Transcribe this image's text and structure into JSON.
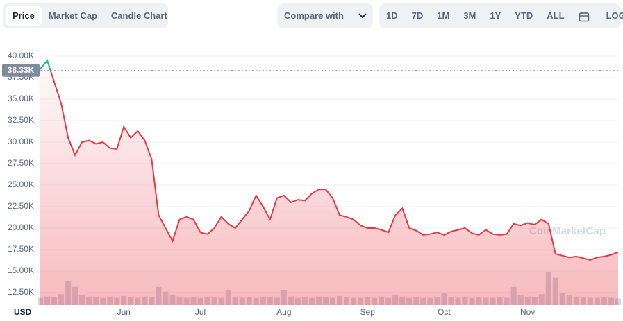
{
  "toolbar": {
    "tabs": [
      "Price",
      "Market Cap",
      "Candle Chart"
    ],
    "compare": "Compare with",
    "ranges": [
      "1D",
      "7D",
      "1M",
      "3M",
      "1Y",
      "YTD",
      "ALL"
    ],
    "log": "LOG"
  },
  "chart_data": {
    "type": "line",
    "watermark": "CoinMarketCap",
    "y_unit": "USD",
    "categories": [
      null,
      null,
      null,
      null,
      null,
      null,
      null,
      null,
      null,
      null,
      null,
      null,
      "Jun",
      null,
      null,
      null,
      null,
      null,
      null,
      null,
      null,
      null,
      null,
      "Jul",
      null,
      null,
      null,
      null,
      null,
      null,
      null,
      null,
      null,
      null,
      null,
      "Aug",
      null,
      null,
      null,
      null,
      null,
      null,
      null,
      null,
      null,
      null,
      null,
      "Sep",
      null,
      null,
      null,
      null,
      null,
      null,
      null,
      null,
      null,
      null,
      "Oct",
      null,
      null,
      null,
      null,
      null,
      null,
      null,
      null,
      null,
      null,
      null,
      "Nov",
      null,
      null,
      null,
      null,
      null,
      null,
      null,
      null,
      null,
      null,
      null,
      null,
      null
    ],
    "series": [
      {
        "name": "Price",
        "color": "#ea3943",
        "up_color": "#16c784",
        "values": [
          38500,
          39500,
          37000,
          34500,
          30500,
          28500,
          30000,
          30200,
          29800,
          30000,
          29300,
          29200,
          31800,
          30500,
          31300,
          30200,
          28000,
          21500,
          20000,
          18500,
          21000,
          21300,
          21000,
          19500,
          19300,
          20000,
          21300,
          20500,
          20000,
          21000,
          22000,
          23800,
          22500,
          21000,
          23500,
          23800,
          23000,
          23300,
          23200,
          24000,
          24500,
          24500,
          23500,
          21500,
          21300,
          21000,
          20300,
          20000,
          20000,
          19800,
          19500,
          21500,
          22300,
          20000,
          19700,
          19200,
          19300,
          19500,
          19200,
          19600,
          19800,
          20000,
          19400,
          19200,
          19800,
          19300,
          19200,
          19300,
          20500,
          20300,
          20600,
          20400,
          21000,
          20500,
          17000,
          16800,
          16600,
          16700,
          16500,
          16300,
          16600,
          16700,
          16900,
          17200
        ]
      },
      {
        "name": "Volume",
        "color": "#cfd6e4",
        "values": [
          12,
          14,
          13,
          18,
          40,
          30,
          16,
          14,
          13,
          12,
          14,
          12,
          15,
          13,
          12,
          14,
          13,
          30,
          22,
          16,
          14,
          12,
          13,
          12,
          14,
          13,
          12,
          25,
          14,
          12,
          13,
          12,
          14,
          13,
          12,
          25,
          14,
          12,
          13,
          12,
          14,
          13,
          12,
          15,
          13,
          12,
          12,
          13,
          12,
          14,
          12,
          16,
          14,
          12,
          13,
          12,
          12,
          13,
          20,
          13,
          12,
          14,
          12,
          13,
          12,
          12,
          13,
          12,
          30,
          16,
          14,
          13,
          18,
          55,
          45,
          20,
          16,
          14,
          13,
          12,
          12,
          13,
          12,
          11
        ]
      }
    ],
    "ylim": [
      11050,
      41050
    ],
    "yticks": [
      {
        "value": 12500,
        "label": "12.50K"
      },
      {
        "value": 15000,
        "label": "15.00K"
      },
      {
        "value": 17500,
        "label": "17.50K"
      },
      {
        "value": 20000,
        "label": "20.00K"
      },
      {
        "value": 22500,
        "label": "22.50K"
      },
      {
        "value": 25000,
        "label": "25.00K"
      },
      {
        "value": 27500,
        "label": "27.50K"
      },
      {
        "value": 30000,
        "label": "30.00K"
      },
      {
        "value": 32500,
        "label": "32.50K"
      },
      {
        "value": 35000,
        "label": "35.00K"
      },
      {
        "value": 37500,
        "label": "37.50K"
      },
      {
        "value": 40000,
        "label": "40.00K"
      }
    ],
    "reference": {
      "value": 38330,
      "label": "38.33K"
    },
    "grid": true
  }
}
